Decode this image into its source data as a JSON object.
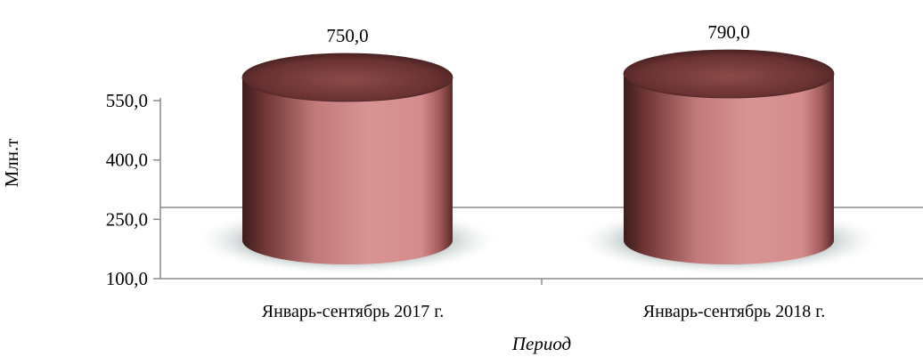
{
  "chart_data": {
    "type": "bar",
    "style": "3d-cylinder",
    "categories": [
      "Январь-сентябрь 2017 г.",
      "Январь-сентябрь 2018 г."
    ],
    "values": [
      750.0,
      790.0
    ],
    "value_labels": [
      "750,0",
      "790,0"
    ],
    "ylabel": "Млн.т",
    "xlabel": "Период",
    "yticks": [
      100.0,
      250.0,
      400.0,
      550.0
    ],
    "ytick_labels": [
      "100,0",
      "250,0",
      "400,0",
      "550,0"
    ],
    "ylim": [
      100,
      550
    ],
    "grid": false,
    "legend": "none",
    "colors": {
      "bar_main": "#d48c8c",
      "bar_dark": "#3c1d1d",
      "bar_top": "#7a3c3c",
      "shadow": "#8a9a9a",
      "axis": "#8a8a8a"
    }
  }
}
